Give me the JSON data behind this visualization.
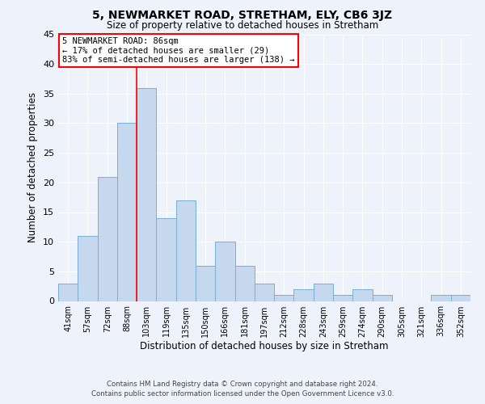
{
  "title": "5, NEWMARKET ROAD, STRETHAM, ELY, CB6 3JZ",
  "subtitle": "Size of property relative to detached houses in Stretham",
  "xlabel": "Distribution of detached houses by size in Stretham",
  "ylabel": "Number of detached properties",
  "bar_labels": [
    "41sqm",
    "57sqm",
    "72sqm",
    "88sqm",
    "103sqm",
    "119sqm",
    "135sqm",
    "150sqm",
    "166sqm",
    "181sqm",
    "197sqm",
    "212sqm",
    "228sqm",
    "243sqm",
    "259sqm",
    "274sqm",
    "290sqm",
    "305sqm",
    "321sqm",
    "336sqm",
    "352sqm"
  ],
  "bar_values": [
    3,
    11,
    21,
    30,
    36,
    14,
    17,
    6,
    10,
    6,
    3,
    1,
    2,
    3,
    1,
    2,
    1,
    0,
    0,
    1,
    1
  ],
  "bar_color": "#c5d8ee",
  "bar_edgecolor": "#7aaed6",
  "vline_x": 3.5,
  "vline_color": "red",
  "ylim": [
    0,
    45
  ],
  "annotation_title": "5 NEWMARKET ROAD: 86sqm",
  "annotation_line1": "← 17% of detached houses are smaller (29)",
  "annotation_line2": "83% of semi-detached houses are larger (138) →",
  "annotation_box_facecolor": "white",
  "annotation_box_edgecolor": "red",
  "footer1": "Contains HM Land Registry data © Crown copyright and database right 2024.",
  "footer2": "Contains public sector information licensed under the Open Government Licence v3.0.",
  "background_color": "#eef2fa",
  "grid_color": "#ffffff"
}
